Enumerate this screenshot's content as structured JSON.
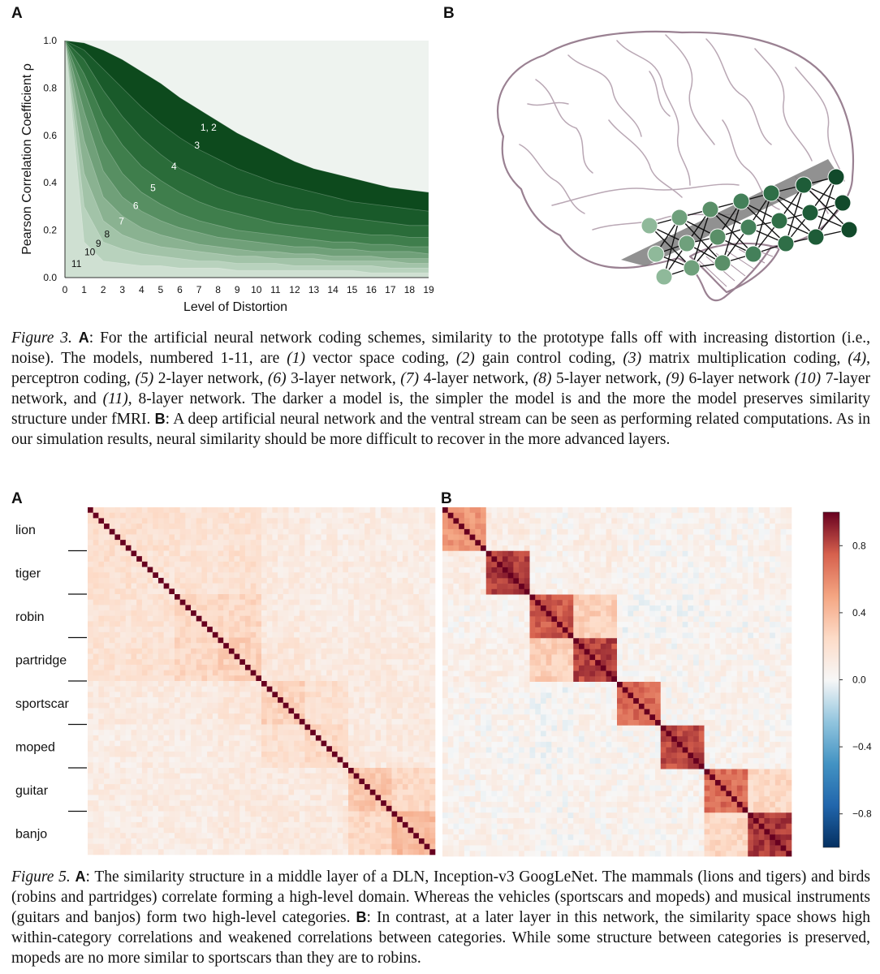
{
  "figure3": {
    "panel_a_letter": "A",
    "panel_b_letter": "B",
    "caption": {
      "label": "Figure 3.",
      "a": "A",
      "t1": ": For the artificial neural network coding schemes, similarity to the prototype falls off with increasing distortion (i.e., noise).  The models, numbered 1-11, are ",
      "m1": "(1)",
      "t2": " vector space coding, ",
      "m2": "(2)",
      "t3": " gain control coding, ",
      "m3": "(3)",
      "t4": " matrix multiplication coding, ",
      "m4": "(4)",
      "t5": ", perceptron coding, ",
      "m5": "(5)",
      "t6": " 2-layer network, ",
      "m6": "(6)",
      "t7": " 3-layer network, ",
      "m7": "(7)",
      "t8": " 4-layer network, ",
      "m8": "(8)",
      "t9": " 5-layer network, ",
      "m9": "(9)",
      "t10": " 6-layer network ",
      "m10": "(10)",
      "t11": " 7-layer network, and ",
      "m11": "(11)",
      "t12": ", 8-layer network.  The darker a model is, the simpler the model is and the more the model preserves similarity structure under fMRI. ",
      "b": "B",
      "t13": ": A deep artificial neural network and the ventral stream can be seen as performing related computations. As in our simulation results, neural similarity should be more difficult to recover in the more advanced layers."
    }
  },
  "figure5": {
    "panel_a_letter": "A",
    "panel_b_letter": "B",
    "caption": {
      "label": "Figure 5.",
      "a": "A",
      "t1": ": The similarity structure in a middle layer of a DLN, Inception-v3 GoogLeNet. The mammals (lions and tigers) and birds (robins and partridges) correlate forming a high-level domain. Whereas the vehicles (sportscars and mopeds) and musical instruments (guitars and banjos) form two high-level categories. ",
      "b": "B",
      "t2": ": In contrast, at a later layer in this network, the similarity space shows high within-category correlations and weakened correlations between categories. While some structure between categories is preserved, mopeds are no more similar to sportscars than they are to robins."
    }
  },
  "chart_data": [
    {
      "type": "area",
      "title": "",
      "xlabel": "Level of Distortion",
      "ylabel": "Pearson Correlation Coefficient ρ",
      "xlim": [
        0,
        19
      ],
      "ylim": [
        0,
        1.0
      ],
      "x": [
        0,
        1,
        2,
        3,
        4,
        5,
        6,
        7,
        8,
        9,
        10,
        11,
        12,
        13,
        14,
        15,
        16,
        17,
        18,
        19
      ],
      "x_ticks": [
        "0",
        "1",
        "2",
        "3",
        "4",
        "5",
        "6",
        "7",
        "8",
        "9",
        "10",
        "11",
        "12",
        "13",
        "14",
        "15",
        "16",
        "17",
        "18",
        "19"
      ],
      "y_ticks": [
        "0.0",
        "0.2",
        "0.4",
        "0.6",
        "0.8",
        "1.0"
      ],
      "y_tick_values": [
        0.0,
        0.2,
        0.4,
        0.6,
        0.8,
        1.0
      ],
      "series": [
        {
          "name": "1, 2",
          "label_at": [
            7.5,
            0.62
          ],
          "values": [
            1.0,
            0.99,
            0.96,
            0.92,
            0.87,
            0.82,
            0.76,
            0.71,
            0.66,
            0.61,
            0.57,
            0.53,
            0.49,
            0.46,
            0.44,
            0.42,
            0.4,
            0.38,
            0.37,
            0.36
          ]
        },
        {
          "name": "3",
          "label_at": [
            6.9,
            0.545
          ],
          "values": [
            1.0,
            0.96,
            0.88,
            0.8,
            0.72,
            0.65,
            0.59,
            0.54,
            0.5,
            0.46,
            0.43,
            0.4,
            0.38,
            0.36,
            0.34,
            0.32,
            0.31,
            0.3,
            0.29,
            0.28
          ]
        },
        {
          "name": "4",
          "label_at": [
            5.7,
            0.455
          ],
          "values": [
            1.0,
            0.92,
            0.79,
            0.68,
            0.59,
            0.52,
            0.46,
            0.42,
            0.38,
            0.35,
            0.33,
            0.31,
            0.29,
            0.28,
            0.26,
            0.25,
            0.24,
            0.23,
            0.22,
            0.22
          ]
        },
        {
          "name": "5",
          "label_at": [
            4.6,
            0.365
          ],
          "values": [
            1.0,
            0.86,
            0.68,
            0.56,
            0.47,
            0.41,
            0.36,
            0.32,
            0.29,
            0.27,
            0.25,
            0.23,
            0.22,
            0.21,
            0.2,
            0.19,
            0.18,
            0.18,
            0.17,
            0.17
          ]
        },
        {
          "name": "6",
          "label_at": [
            3.7,
            0.29
          ],
          "values": [
            1.0,
            0.79,
            0.57,
            0.44,
            0.36,
            0.31,
            0.27,
            0.24,
            0.22,
            0.2,
            0.19,
            0.18,
            0.17,
            0.16,
            0.15,
            0.15,
            0.14,
            0.14,
            0.13,
            0.13
          ]
        },
        {
          "name": "7",
          "label_at": [
            2.95,
            0.225
          ],
          "values": [
            1.0,
            0.7,
            0.45,
            0.34,
            0.28,
            0.24,
            0.21,
            0.19,
            0.17,
            0.16,
            0.15,
            0.14,
            0.13,
            0.13,
            0.12,
            0.12,
            0.11,
            0.11,
            0.11,
            0.1
          ]
        },
        {
          "name": "8",
          "label_at": [
            2.2,
            0.17
          ],
          "values": [
            1.0,
            0.58,
            0.34,
            0.26,
            0.21,
            0.18,
            0.16,
            0.14,
            0.13,
            0.12,
            0.11,
            0.11,
            0.1,
            0.1,
            0.09,
            0.09,
            0.09,
            0.08,
            0.08,
            0.08
          ]
        },
        {
          "name": "9",
          "label_at": [
            1.75,
            0.13
          ],
          "values": [
            1.0,
            0.44,
            0.24,
            0.18,
            0.15,
            0.13,
            0.12,
            0.11,
            0.1,
            0.09,
            0.09,
            0.08,
            0.08,
            0.08,
            0.07,
            0.07,
            0.07,
            0.07,
            0.06,
            0.06
          ]
        },
        {
          "name": "10",
          "label_at": [
            1.3,
            0.095
          ],
          "values": [
            1.0,
            0.3,
            0.15,
            0.12,
            0.1,
            0.09,
            0.08,
            0.07,
            0.07,
            0.06,
            0.06,
            0.06,
            0.05,
            0.05,
            0.05,
            0.05,
            0.05,
            0.04,
            0.04,
            0.04
          ]
        },
        {
          "name": "11",
          "label_at": [
            0.6,
            0.045
          ],
          "values": [
            1.0,
            0.15,
            0.07,
            0.06,
            0.05,
            0.05,
            0.04,
            0.04,
            0.04,
            0.03,
            0.03,
            0.03,
            0.03,
            0.03,
            0.03,
            0.03,
            0.02,
            0.02,
            0.02,
            0.02
          ]
        }
      ],
      "colors": [
        "#0d4a1d",
        "#195a2a",
        "#2a6c39",
        "#3f7e4c",
        "#578f62",
        "#70a079",
        "#8ab291",
        "#a2c3a8",
        "#b8d2bd",
        "#cfe0d2"
      ]
    },
    {
      "type": "heatmap",
      "panel": "A",
      "title": "",
      "categories": [
        "lion",
        "tiger",
        "robin",
        "partridge",
        "sportscar",
        "moped",
        "guitar",
        "banjo"
      ],
      "items_per_category": 8,
      "within_category": [
        0.2,
        0.18,
        0.25,
        0.3,
        0.28,
        0.25,
        0.35,
        0.4
      ],
      "between_category": [
        [
          0.2,
          0.2,
          0.18,
          0.18,
          0.12,
          0.1,
          0.1,
          0.1
        ],
        [
          0.2,
          0.18,
          0.18,
          0.2,
          0.12,
          0.1,
          0.1,
          0.1
        ],
        [
          0.18,
          0.18,
          0.25,
          0.25,
          0.12,
          0.1,
          0.1,
          0.1
        ],
        [
          0.18,
          0.2,
          0.25,
          0.3,
          0.15,
          0.12,
          0.12,
          0.12
        ],
        [
          0.12,
          0.12,
          0.12,
          0.15,
          0.28,
          0.2,
          0.12,
          0.12
        ],
        [
          0.1,
          0.1,
          0.1,
          0.12,
          0.2,
          0.25,
          0.12,
          0.12
        ],
        [
          0.1,
          0.1,
          0.1,
          0.12,
          0.12,
          0.12,
          0.35,
          0.25
        ],
        [
          0.1,
          0.1,
          0.1,
          0.12,
          0.12,
          0.12,
          0.25,
          0.4
        ]
      ],
      "diagonal": 1.0
    },
    {
      "type": "heatmap",
      "panel": "B",
      "title": "",
      "categories": [
        "lion",
        "tiger",
        "robin",
        "partridge",
        "sportscar",
        "moped",
        "guitar",
        "banjo"
      ],
      "items_per_category": 8,
      "within_category": [
        0.55,
        0.85,
        0.75,
        0.82,
        0.7,
        0.8,
        0.7,
        0.85
      ],
      "between_category": [
        [
          0.55,
          0.1,
          0.05,
          0.08,
          0.05,
          0.05,
          0.05,
          0.05
        ],
        [
          0.1,
          0.85,
          0.05,
          0.08,
          0.05,
          0.03,
          0.05,
          0.05
        ],
        [
          0.05,
          0.05,
          0.75,
          0.3,
          0.02,
          0.02,
          0.03,
          0.03
        ],
        [
          0.08,
          0.08,
          0.3,
          0.82,
          0.05,
          0.03,
          0.05,
          0.05
        ],
        [
          0.05,
          0.05,
          0.02,
          0.05,
          0.7,
          0.05,
          0.05,
          0.05
        ],
        [
          0.05,
          0.03,
          0.02,
          0.03,
          0.05,
          0.8,
          0.05,
          0.05
        ],
        [
          0.05,
          0.05,
          0.03,
          0.05,
          0.05,
          0.05,
          0.7,
          0.25
        ],
        [
          0.05,
          0.05,
          0.03,
          0.05,
          0.05,
          0.05,
          0.25,
          0.85
        ]
      ],
      "diagonal": 1.0,
      "colorbar": {
        "min": -1.0,
        "max": 1.0,
        "ticks": [
          0.8,
          0.4,
          0.0,
          -0.4,
          -0.8
        ],
        "tick_labels": [
          "0.8",
          "0.4",
          "0.0",
          "−0.4",
          "−0.8"
        ]
      }
    }
  ]
}
